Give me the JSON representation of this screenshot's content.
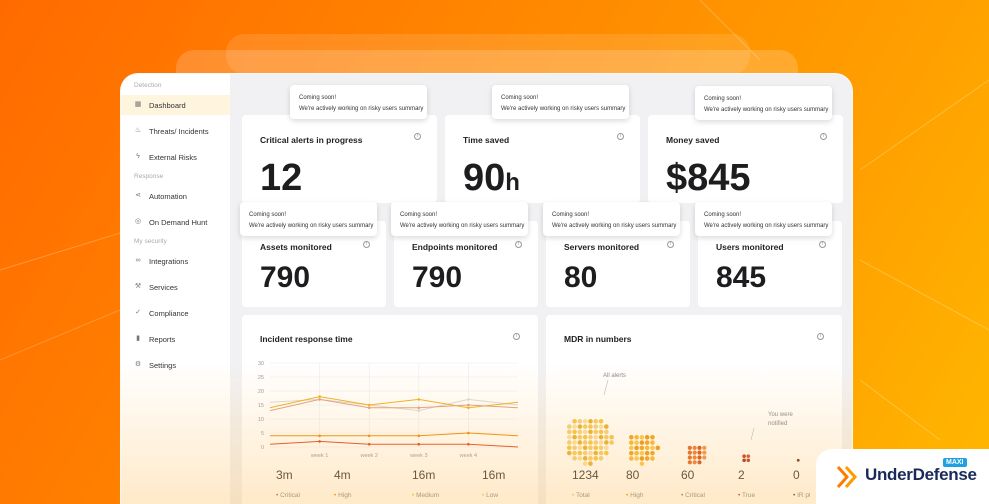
{
  "sidebar": {
    "sections": [
      "Detection",
      "Response",
      "My security"
    ],
    "items": [
      {
        "label": "Dashboard",
        "icon": "grid-icon"
      },
      {
        "label": "Threats/ Incidents",
        "icon": "flame-icon"
      },
      {
        "label": "External Risks",
        "icon": "bolt-icon"
      },
      {
        "label": "Automation",
        "icon": "share-icon"
      },
      {
        "label": "On Demand Hunt",
        "icon": "target-icon"
      },
      {
        "label": "Integrations",
        "icon": "link-icon"
      },
      {
        "label": "Services",
        "icon": "wrench-icon"
      },
      {
        "label": "Compliance",
        "icon": "check-circle-icon"
      },
      {
        "label": "Reports",
        "icon": "bar-chart-icon"
      },
      {
        "label": "Settings",
        "icon": "gear-icon"
      }
    ]
  },
  "tooltip": {
    "line1": "Coming soon!",
    "line2": "We're actively working on risky users summary"
  },
  "top_cards": [
    {
      "title": "Critical alerts in progress",
      "value": "12",
      "unit": ""
    },
    {
      "title": "Time saved",
      "value": "90",
      "unit": "h"
    },
    {
      "title": "Money saved",
      "value": "$845",
      "unit": ""
    }
  ],
  "mid_cards": [
    {
      "title": "Assets monitored",
      "value": "790"
    },
    {
      "title": "Endpoints monitored",
      "value": "790"
    },
    {
      "title": "Servers monitored",
      "value": "80"
    },
    {
      "title": "Users monitored",
      "value": "845"
    }
  ],
  "incident_chart": {
    "title": "Incident response time",
    "stats": [
      {
        "value": "3m",
        "label": "Critical"
      },
      {
        "value": "4m",
        "label": "High"
      },
      {
        "value": "16m",
        "label": "Medium"
      },
      {
        "value": "16m",
        "label": "Low"
      }
    ]
  },
  "chart_data": {
    "type": "line",
    "x": [
      "",
      "week 1",
      "week 2",
      "week 3",
      "week 4",
      ""
    ],
    "xticks": [
      "week 1",
      "week 2",
      "week 3",
      "week 4"
    ],
    "ylim": [
      0,
      30
    ],
    "yticks": [
      0,
      5,
      10,
      15,
      20,
      25,
      30
    ],
    "series": [
      {
        "color": "#d9d9d9",
        "values": [
          16,
          17,
          15,
          13,
          17,
          15
        ]
      },
      {
        "color": "#f0b020",
        "values": [
          14,
          18,
          15,
          17,
          14,
          16
        ]
      },
      {
        "color": "#e0a080",
        "values": [
          13,
          17,
          14,
          14,
          15,
          14
        ]
      },
      {
        "color": "#f08a00",
        "values": [
          4,
          4,
          4,
          4,
          5,
          4
        ]
      },
      {
        "color": "#e04a20",
        "values": [
          1,
          2,
          1,
          1,
          1,
          0
        ]
      }
    ]
  },
  "mdr": {
    "title": "MDR in numbers",
    "annotations": [
      "All alerts",
      "You were notified"
    ],
    "stats": [
      {
        "value": "1234",
        "label": "Total"
      },
      {
        "value": "80",
        "label": "High"
      },
      {
        "value": "60",
        "label": "Critical"
      },
      {
        "value": "2",
        "label": "True"
      },
      {
        "value": "0",
        "label": "IR pl"
      }
    ]
  },
  "logo": {
    "name": "UnderDefense",
    "badge": "MAXI"
  },
  "colors": {
    "accent": "#ff8a00",
    "critical": "#e04a20",
    "high": "#f08a00",
    "medium": "#f0b020"
  }
}
